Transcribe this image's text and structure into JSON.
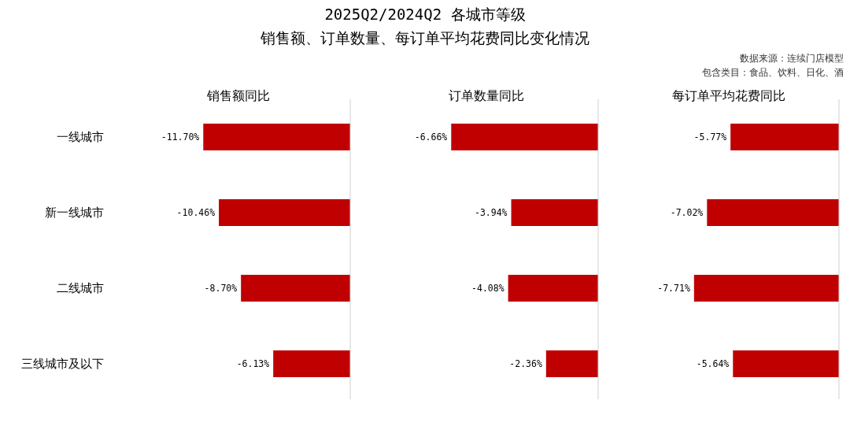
{
  "chart_data": [
    {
      "type": "other",
      "title": "2025Q2/2024Q2 各城市等级",
      "subtitle": "销售额、订单数量、每订单平均花费同比变化情况",
      "annotations": [
        "数据来源：连续门店模型",
        "包含类目：食品、饮料、日化、酒"
      ]
    },
    {
      "type": "bar",
      "orientation": "horizontal",
      "title": "销售额同比",
      "categories": [
        "一线城市",
        "新一线城市",
        "二线城市",
        "三线城市及以下"
      ],
      "values": [
        -11.7,
        -10.46,
        -8.7,
        -6.13
      ],
      "value_labels": [
        "-11.70%",
        "-10.46%",
        "-8.70%",
        "-6.13%"
      ],
      "color": "#c00000",
      "tick_labels": "y"
    },
    {
      "type": "bar",
      "orientation": "horizontal",
      "title": "订单数量同比",
      "values": [
        -6.66,
        -3.94,
        -4.08,
        -2.36
      ],
      "value_labels": [
        "-6.66%",
        "-3.94%",
        "-4.08%",
        "-2.36%"
      ],
      "color": "#c00000",
      "tick_labels": false
    },
    {
      "type": "bar",
      "orientation": "horizontal",
      "title": "每订单平均花费同比",
      "values": [
        -5.77,
        -7.02,
        -7.71,
        -5.64
      ],
      "value_labels": [
        "-5.77%",
        "-7.02%",
        "-7.71%",
        "-5.64%"
      ],
      "color": "#c00000",
      "tick_labels": false
    }
  ]
}
